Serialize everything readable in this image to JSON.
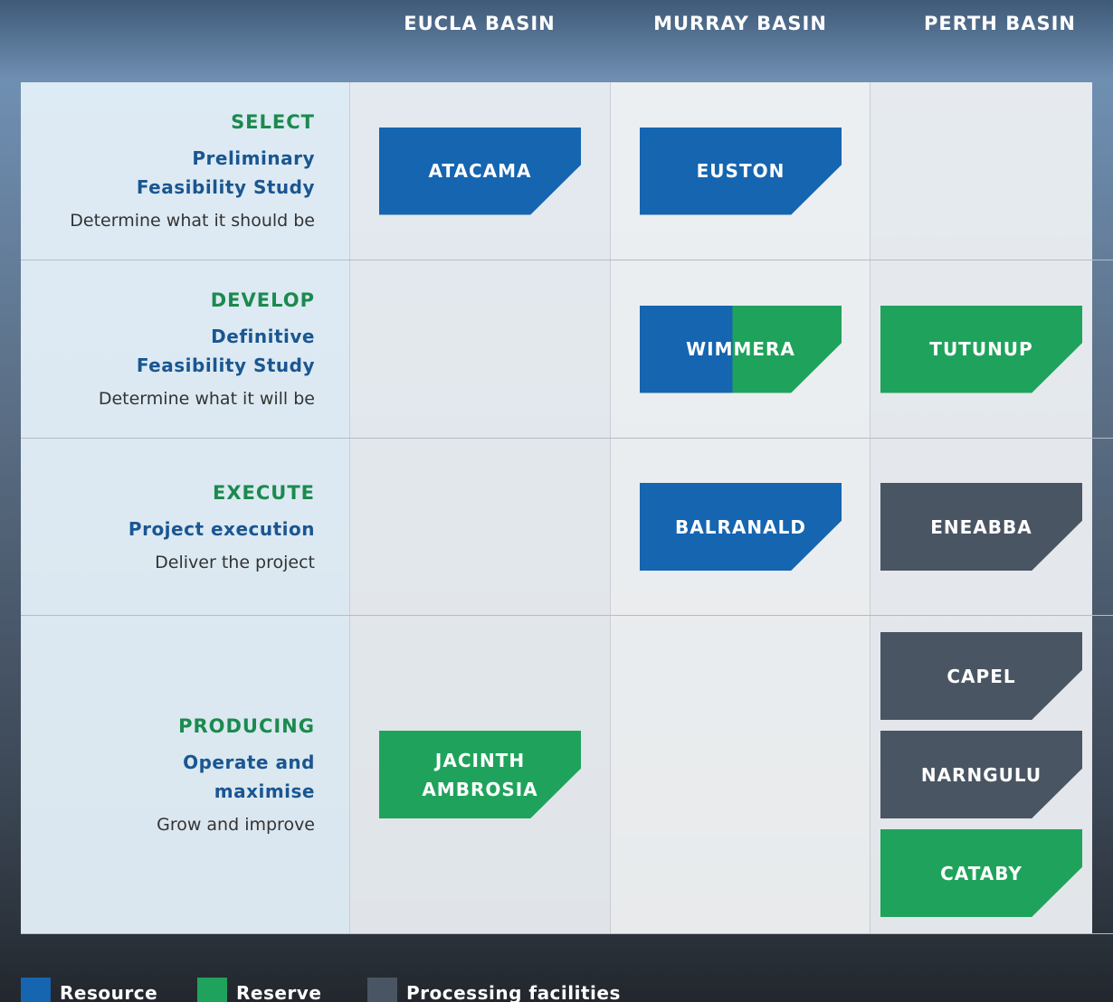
{
  "columns": [
    "EUCLA BASIN",
    "MURRAY BASIN",
    "PERTH BASIN"
  ],
  "rows": [
    {
      "stage": "SELECT",
      "subtitle": "Preliminary\nFeasibility Study",
      "description": "Determine what it should be",
      "cells": [
        [
          {
            "name": "ATACAMA",
            "colors": [
              "#1565b0"
            ]
          }
        ],
        [
          {
            "name": "EUSTON",
            "colors": [
              "#1565b0"
            ]
          }
        ],
        []
      ]
    },
    {
      "stage": "DEVELOP",
      "subtitle": "Definitive\nFeasibility Study",
      "description": "Determine what it will be",
      "cells": [
        [],
        [
          {
            "name": "WIMMERA",
            "colors": [
              "#1565b0",
              "#1fa35c"
            ]
          }
        ],
        [
          {
            "name": "TUTUNUP",
            "colors": [
              "#1fa35c"
            ]
          }
        ]
      ]
    },
    {
      "stage": "EXECUTE",
      "subtitle": "Project execution",
      "description": "Deliver the project",
      "cells": [
        [],
        [
          {
            "name": "BALRANALD",
            "colors": [
              "#1565b0"
            ]
          }
        ],
        [
          {
            "name": "ENEABBA",
            "colors": [
              "#4a5563"
            ]
          }
        ]
      ]
    },
    {
      "stage": "PRODUCING",
      "subtitle": "Operate and\nmaximise",
      "description": "Grow and improve",
      "cells": [
        [
          {
            "name": "JACINTH\nAMBROSIA",
            "colors": [
              "#1fa35c"
            ]
          }
        ],
        [],
        [
          {
            "name": "CAPEL",
            "colors": [
              "#4a5563"
            ]
          },
          {
            "name": "NARNGULU",
            "colors": [
              "#4a5563"
            ]
          },
          {
            "name": "CATABY",
            "colors": [
              "#1fa35c"
            ]
          }
        ]
      ]
    }
  ],
  "legend": [
    {
      "label": "Resource",
      "color": "#1565b0"
    },
    {
      "label": "Reserve",
      "color": "#1fa35c"
    },
    {
      "label": "Processing facilities",
      "color": "#4a5563"
    }
  ]
}
